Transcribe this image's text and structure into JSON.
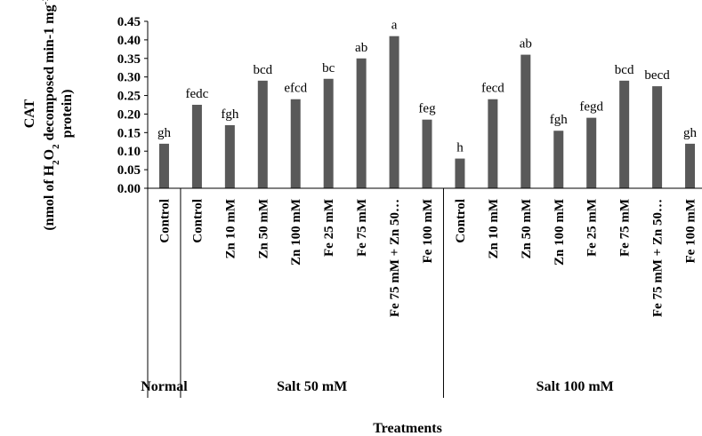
{
  "chart_data": {
    "type": "bar",
    "xlabel": "Treatments",
    "ylabel": {
      "line1": "CAT",
      "line2_a": "(nmol of H",
      "line2_sub": "2",
      "line2_b": "O",
      "line2_sub2": "2",
      "line2_c": " decomposed min-1 mg",
      "line2_sup": "-1",
      "line3": "protein)"
    },
    "ylim": [
      0,
      0.45
    ],
    "yticks": [
      "0.00",
      "0.05",
      "0.10",
      "0.15",
      "0.20",
      "0.25",
      "0.30",
      "0.35",
      "0.40",
      "0.45"
    ],
    "bar_color": "#595959",
    "groups": [
      {
        "name": "Normal",
        "count": 1
      },
      {
        "name": "Salt 50 mM",
        "count": 8
      },
      {
        "name": "Salt 100 mM",
        "count": 8
      }
    ],
    "categories": [
      "Control",
      "Control",
      "Zn 10 mM",
      "Zn 50 mM",
      "Zn 100 mM",
      "Fe 25 mM",
      "Fe 75 mM",
      "Fe 75 mM + Zn 50…",
      "Fe 100 mM",
      "Control",
      "Zn 10 mM",
      "Zn 50 mM",
      "Zn 100 mM",
      "Fe 25 mM",
      "Fe 75 mM",
      "Fe 75 mM + Zn 50…",
      "Fe 100 mM"
    ],
    "values": [
      0.12,
      0.225,
      0.17,
      0.29,
      0.24,
      0.295,
      0.35,
      0.41,
      0.185,
      0.08,
      0.24,
      0.36,
      0.155,
      0.19,
      0.29,
      0.275,
      0.12
    ],
    "labels": [
      "gh",
      "fedc",
      "fgh",
      "bcd",
      "efcd",
      "bc",
      "ab",
      "a",
      "feg",
      "h",
      "fecd",
      "ab",
      "fgh",
      "fegd",
      "bcd",
      "becd",
      "gh"
    ]
  }
}
